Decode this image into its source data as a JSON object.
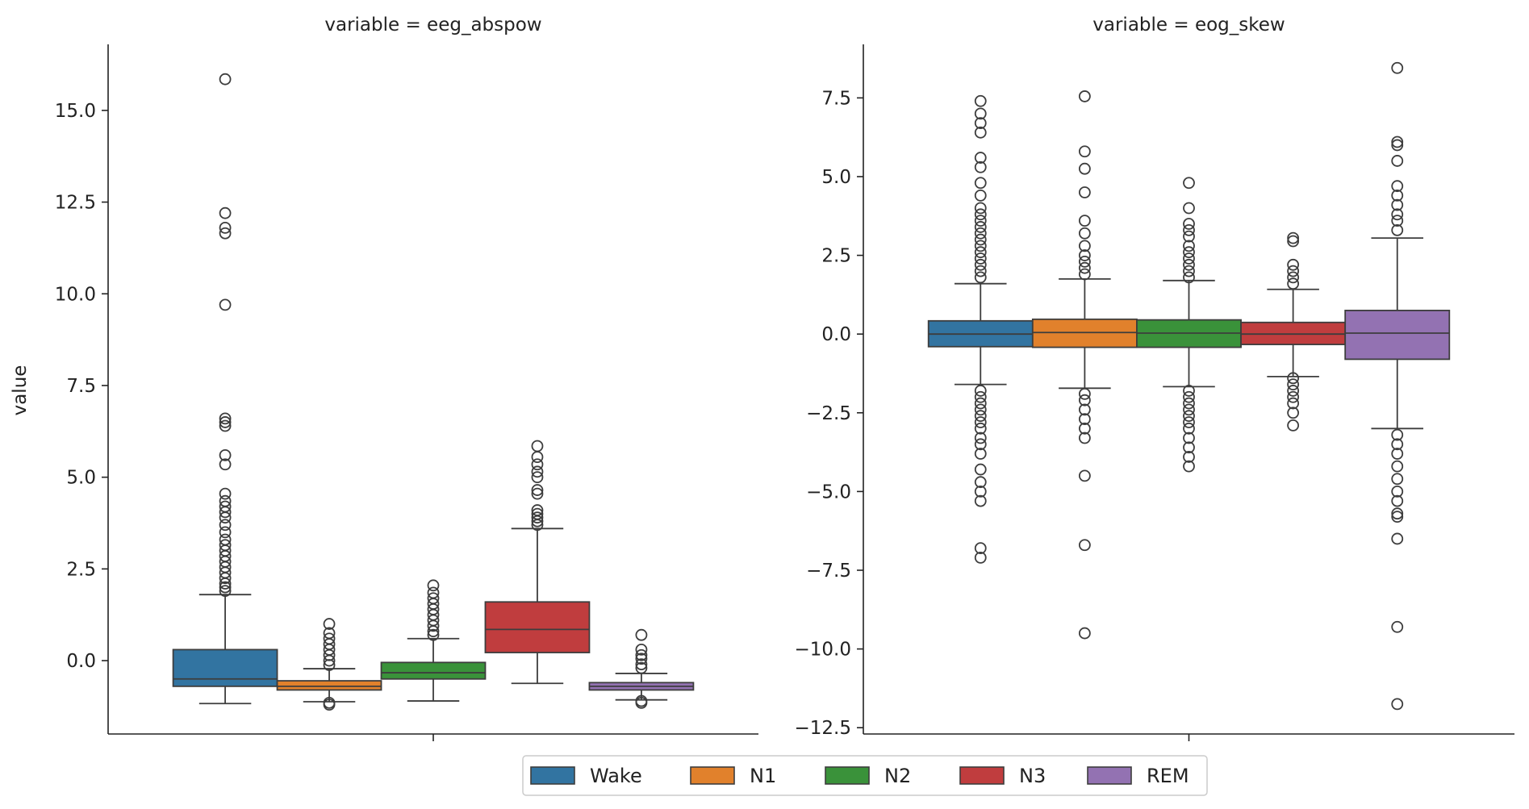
{
  "ylabel": "value",
  "legend": {
    "placement": "bottom-center",
    "entries": [
      {
        "label": "Wake",
        "color": "#3274a1"
      },
      {
        "label": "N1",
        "color": "#e1812c"
      },
      {
        "label": "N2",
        "color": "#3a923a"
      },
      {
        "label": "N3",
        "color": "#c03d3e"
      },
      {
        "label": "REM",
        "color": "#9372b2"
      }
    ]
  },
  "chart_data": [
    {
      "type": "box",
      "title": "variable = eeg_abspow",
      "ylabel": "value",
      "yticks": [
        0.0,
        2.5,
        5.0,
        7.5,
        10.0,
        12.5,
        15.0
      ],
      "ytick_labels": [
        "0.0",
        "2.5",
        "5.0",
        "7.5",
        "10.0",
        "12.5",
        "15.0"
      ],
      "ylim": [
        -2.0,
        16.8
      ],
      "grid": false,
      "boxes": [
        {
          "name": "Wake",
          "q1": -0.7,
          "median": -0.5,
          "q3": 0.3,
          "whisker_low": -1.17,
          "whisker_high": 1.8,
          "outliers": [
            15.85,
            12.2,
            11.8,
            11.65,
            9.7,
            6.6,
            6.5,
            6.4,
            5.6,
            5.35,
            4.55,
            4.35,
            4.2,
            4.05,
            3.9,
            3.7,
            3.5,
            3.3,
            3.15,
            3.0,
            2.85,
            2.7,
            2.55,
            2.4,
            2.25,
            2.1,
            2.0,
            1.9
          ]
        },
        {
          "name": "N1",
          "q1": -0.8,
          "median": -0.7,
          "q3": -0.55,
          "whisker_low": -1.12,
          "whisker_high": -0.22,
          "outliers": [
            1.0,
            0.75,
            0.6,
            0.45,
            0.3,
            0.15,
            0.0,
            -0.12,
            -1.15,
            -1.2
          ]
        },
        {
          "name": "N2",
          "q1": -0.5,
          "median": -0.33,
          "q3": -0.05,
          "whisker_low": -1.1,
          "whisker_high": 0.6,
          "outliers": [
            2.05,
            1.85,
            1.7,
            1.55,
            1.4,
            1.25,
            1.1,
            0.95,
            0.8,
            0.7
          ]
        },
        {
          "name": "N3",
          "q1": 0.22,
          "median": 0.85,
          "q3": 1.6,
          "whisker_low": -0.62,
          "whisker_high": 3.6,
          "outliers": [
            5.85,
            5.55,
            5.35,
            5.15,
            5.0,
            4.65,
            4.55,
            4.1,
            4.0,
            3.9,
            3.8,
            3.7
          ]
        },
        {
          "name": "REM",
          "q1": -0.8,
          "median": -0.7,
          "q3": -0.6,
          "whisker_low": -1.07,
          "whisker_high": -0.35,
          "outliers": [
            0.7,
            0.3,
            0.15,
            0.05,
            -0.1,
            -0.2,
            -1.1,
            -1.15
          ]
        }
      ]
    },
    {
      "type": "box",
      "title": "variable = eog_skew",
      "ylabel": "",
      "yticks": [
        -12.5,
        -10.0,
        -7.5,
        -5.0,
        -2.5,
        0.0,
        2.5,
        5.0,
        7.5
      ],
      "ytick_labels": [
        "−12.5",
        "−10.0",
        "−7.5",
        "−5.0",
        "−2.5",
        "0.0",
        "2.5",
        "5.0",
        "7.5"
      ],
      "ylim": [
        -12.7,
        9.2
      ],
      "grid": false,
      "boxes": [
        {
          "name": "Wake",
          "q1": -0.4,
          "median": 0.0,
          "q3": 0.42,
          "whisker_low": -1.6,
          "whisker_high": 1.6,
          "outliers": [
            7.4,
            7.0,
            6.7,
            6.4,
            5.6,
            5.3,
            4.8,
            4.4,
            4.0,
            3.8,
            3.6,
            3.4,
            3.2,
            3.0,
            2.8,
            2.6,
            2.4,
            2.2,
            2.0,
            1.8,
            -1.8,
            -2.0,
            -2.2,
            -2.4,
            -2.6,
            -2.8,
            -3.0,
            -3.3,
            -3.5,
            -3.8,
            -4.3,
            -4.7,
            -5.0,
            -5.3,
            -6.8,
            -7.1
          ]
        },
        {
          "name": "N1",
          "q1": -0.42,
          "median": 0.05,
          "q3": 0.47,
          "whisker_low": -1.72,
          "whisker_high": 1.75,
          "outliers": [
            7.55,
            5.8,
            5.25,
            4.5,
            3.6,
            3.2,
            2.8,
            2.5,
            2.3,
            2.1,
            1.9,
            -1.9,
            -2.1,
            -2.4,
            -2.7,
            -3.0,
            -3.3,
            -4.5,
            -6.7,
            -9.5
          ]
        },
        {
          "name": "N2",
          "q1": -0.42,
          "median": 0.03,
          "q3": 0.45,
          "whisker_low": -1.67,
          "whisker_high": 1.7,
          "outliers": [
            4.8,
            4.0,
            3.5,
            3.3,
            3.1,
            2.8,
            2.6,
            2.4,
            2.2,
            2.0,
            1.8,
            -1.8,
            -2.0,
            -2.2,
            -2.4,
            -2.6,
            -2.8,
            -3.0,
            -3.3,
            -3.6,
            -3.9,
            -4.2
          ]
        },
        {
          "name": "N3",
          "q1": -0.33,
          "median": 0.0,
          "q3": 0.37,
          "whisker_low": -1.35,
          "whisker_high": 1.42,
          "outliers": [
            3.05,
            2.95,
            2.2,
            2.0,
            1.8,
            1.6,
            -1.4,
            -1.6,
            -1.8,
            -2.0,
            -2.2,
            -2.5,
            -2.9
          ]
        },
        {
          "name": "REM",
          "q1": -0.8,
          "median": 0.03,
          "q3": 0.75,
          "whisker_low": -3.0,
          "whisker_high": 3.05,
          "outliers": [
            8.45,
            6.1,
            6.0,
            5.5,
            4.7,
            4.4,
            4.1,
            3.8,
            3.6,
            3.3,
            -3.2,
            -3.5,
            -3.8,
            -4.2,
            -4.6,
            -5.0,
            -5.3,
            -5.7,
            -5.8,
            -6.5,
            -9.3,
            -11.75
          ]
        }
      ]
    }
  ]
}
